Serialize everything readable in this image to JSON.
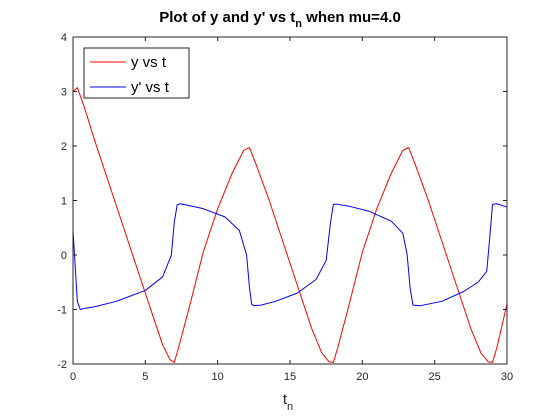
{
  "chart_data": {
    "type": "line",
    "title": "Plot of y and y' vs t",
    "title_subscript": "n",
    "title_suffix": " when mu=4.0",
    "xlabel": "t",
    "xlabel_subscript": "n",
    "ylabel": "",
    "xlim": [
      0,
      30
    ],
    "ylim": [
      -2,
      4
    ],
    "xticks": [
      0,
      5,
      10,
      15,
      20,
      25,
      30
    ],
    "yticks": [
      -2,
      -1,
      0,
      1,
      2,
      3,
      4
    ],
    "grid": false,
    "legend_position": "top-left",
    "series": [
      {
        "name": "y vs t",
        "color": "#ff0000",
        "x": [
          0,
          0.3,
          0.8,
          1.5,
          2.5,
          3.5,
          4.5,
          5.5,
          6.2,
          6.7,
          7.0,
          7.3,
          8,
          9,
          10,
          11,
          11.8,
          12.2,
          12.6,
          13.5,
          14.5,
          15.5,
          16.5,
          17.2,
          17.7,
          18.0,
          18.3,
          19,
          20,
          21,
          22,
          22.8,
          23.2,
          23.6,
          24.5,
          25.5,
          26.5,
          27.5,
          28.2,
          28.7,
          29.0,
          29.3,
          30
        ],
        "y": [
          3.0,
          3.07,
          2.7,
          2.1,
          1.3,
          0.5,
          -0.3,
          -1.1,
          -1.65,
          -1.92,
          -1.97,
          -1.7,
          -1.0,
          0.05,
          0.85,
          1.5,
          1.92,
          1.97,
          1.7,
          1.05,
          0.25,
          -0.55,
          -1.35,
          -1.8,
          -1.96,
          -1.97,
          -1.7,
          -1.0,
          0.05,
          0.85,
          1.5,
          1.92,
          1.97,
          1.7,
          1.05,
          0.25,
          -0.55,
          -1.35,
          -1.8,
          -1.96,
          -1.97,
          -1.7,
          -0.9
        ]
      },
      {
        "name": "y' vs t",
        "color": "#0000ff",
        "x": [
          0,
          0.15,
          0.3,
          0.5,
          0.8,
          1.5,
          3,
          5,
          6.2,
          6.8,
          7.0,
          7.2,
          7.4,
          7.8,
          9,
          10.5,
          11.5,
          12.0,
          12.2,
          12.35,
          12.5,
          13,
          14,
          15.5,
          16.8,
          17.5,
          17.8,
          18.0,
          18.3,
          19,
          20.5,
          22,
          22.8,
          23.1,
          23.3,
          23.5,
          24,
          25.5,
          27,
          28,
          28.6,
          28.8,
          29.0,
          29.3,
          30
        ],
        "y": [
          0.45,
          -0.2,
          -0.85,
          -1.0,
          -0.98,
          -0.95,
          -0.85,
          -0.65,
          -0.4,
          0.0,
          0.6,
          0.92,
          0.94,
          0.92,
          0.85,
          0.7,
          0.45,
          0.0,
          -0.6,
          -0.9,
          -0.93,
          -0.92,
          -0.85,
          -0.7,
          -0.45,
          -0.1,
          0.6,
          0.93,
          0.93,
          0.9,
          0.8,
          0.62,
          0.4,
          0.0,
          -0.6,
          -0.92,
          -0.93,
          -0.85,
          -0.67,
          -0.5,
          -0.3,
          0.3,
          0.93,
          0.94,
          0.88
        ]
      }
    ]
  }
}
